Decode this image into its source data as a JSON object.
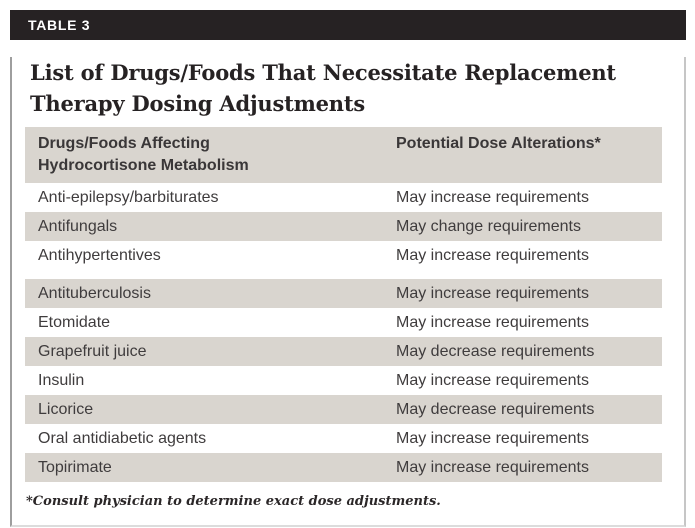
{
  "table_tag": "TABLE 3",
  "title": {
    "lines": [
      "List of Drugs/Foods That Necessitate Replacement",
      "Therapy Dosing Adjustments"
    ]
  },
  "table": {
    "headers": [
      "Drugs/Foods Affecting Hydrocortisone Metabolism",
      "Potential Dose Alterations*"
    ],
    "rows": [
      {
        "drug": "Anti-epilepsy/barbiturates",
        "alteration": "May increase requirements"
      },
      {
        "drug": "Antifungals",
        "alteration": "May change requirements"
      },
      {
        "drug": "Antihypertentives",
        "alteration": "May increase requirements"
      },
      {
        "drug": "Antituberculosis",
        "alteration": "May increase requirements"
      },
      {
        "drug": "Etomidate",
        "alteration": "May increase requirements"
      },
      {
        "drug": "Grapefruit juice",
        "alteration": "May decrease requirements"
      },
      {
        "drug": "Insulin",
        "alteration": "May increase requirements"
      },
      {
        "drug": "Licorice",
        "alteration": "May decrease requirements"
      },
      {
        "drug": "Oral antidiabetic agents",
        "alteration": "May increase requirements"
      },
      {
        "drug": "Topirimate",
        "alteration": "May increase requirements"
      }
    ]
  },
  "footnote": "*Consult physician to determine exact dose adjustments.",
  "colors": {
    "header_bar": "#262223",
    "row_gray": "#d9d5cf",
    "body_text": "#3f3c3d",
    "title_text": "#262223"
  }
}
